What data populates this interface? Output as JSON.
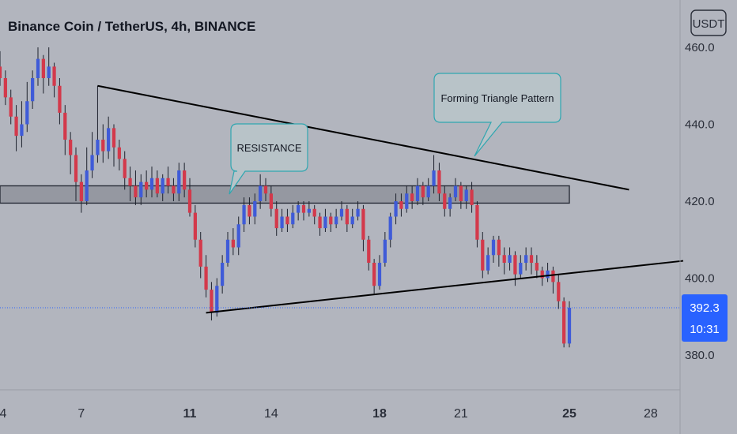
{
  "header": {
    "title": "Binance Coin / TetherUS, 4h, BINANCE"
  },
  "currency_button": {
    "label": "USDT"
  },
  "price_tag": {
    "price": "392.3",
    "countdown": "10:31",
    "color": "#2962ff"
  },
  "colors": {
    "up": "#3f5bd8",
    "down": "#d3394b",
    "background": "#b2b5be",
    "resistance_zone": "#9598a1",
    "trendline": "#000000",
    "callout_fill": "#b8c3c8",
    "callout_border": "#2fa6b0"
  },
  "annotations": {
    "resistance_label": "RESISTANCE",
    "triangle_label": "Forming Triangle Pattern"
  },
  "chart_data": {
    "type": "candlestick",
    "title": "Binance Coin / TetherUS, 4h, BINANCE",
    "y_axis": {
      "ticks": [
        "460.0",
        "440.0",
        "420.0",
        "400.0",
        "380.0"
      ],
      "tick_values": [
        460,
        440,
        420,
        400,
        380
      ],
      "range": [
        366,
        470
      ],
      "side": "right"
    },
    "x_axis": {
      "ticks": [
        "4",
        "7",
        "11",
        "14",
        "18",
        "21",
        "25",
        "28"
      ],
      "tick_values": [
        4,
        7,
        11,
        14,
        18,
        21,
        25,
        28
      ],
      "bold_ticks": [
        "11",
        "18",
        "25"
      ],
      "range": [
        4,
        29.5
      ]
    },
    "resistance_zone": {
      "low": 419.5,
      "high": 424,
      "x_start": 4,
      "x_end": 25.0
    },
    "trendlines": [
      {
        "name": "descending",
        "points": [
          [
            7.6,
            450
          ],
          [
            27.2,
            423
          ]
        ]
      },
      {
        "name": "ascending",
        "points": [
          [
            11.6,
            391
          ],
          [
            29.2,
            404.5
          ]
        ]
      }
    ],
    "last_price": 392.3,
    "current_price_line": 392.3,
    "candles": [
      [
        4.0,
        455,
        452,
        459,
        450
      ],
      [
        4.2,
        452,
        447,
        454,
        445
      ],
      [
        4.4,
        447,
        442,
        449,
        440
      ],
      [
        4.6,
        442,
        437,
        445,
        433
      ],
      [
        4.8,
        437,
        440,
        446,
        434
      ],
      [
        5.0,
        440,
        446,
        451,
        438
      ],
      [
        5.2,
        446,
        452,
        454,
        444
      ],
      [
        5.4,
        452,
        457,
        460,
        450
      ],
      [
        5.6,
        457,
        452,
        458,
        448
      ],
      [
        5.8,
        452,
        455,
        460,
        450
      ],
      [
        6.0,
        455,
        450,
        456,
        447
      ],
      [
        6.2,
        450,
        443,
        452,
        440
      ],
      [
        6.4,
        443,
        436,
        445,
        432
      ],
      [
        6.6,
        436,
        432,
        438,
        427
      ],
      [
        6.8,
        432,
        425,
        434,
        420
      ],
      [
        7.0,
        425,
        420,
        427,
        417
      ],
      [
        7.2,
        420,
        428,
        434,
        419
      ],
      [
        7.4,
        428,
        432,
        438,
        426
      ],
      [
        7.6,
        432,
        436,
        450,
        430
      ],
      [
        7.8,
        436,
        433,
        440,
        430
      ],
      [
        8.0,
        433,
        439,
        442,
        431
      ],
      [
        8.2,
        439,
        434,
        440,
        429
      ],
      [
        8.4,
        434,
        431,
        436,
        428
      ],
      [
        8.6,
        431,
        426,
        433,
        423
      ],
      [
        8.8,
        426,
        424,
        429,
        420
      ],
      [
        9.0,
        424,
        421,
        428,
        419
      ],
      [
        9.2,
        421,
        425,
        427,
        419
      ],
      [
        9.4,
        425,
        423,
        428,
        421
      ],
      [
        9.6,
        423,
        426,
        429,
        421
      ],
      [
        9.8,
        426,
        422,
        428,
        421
      ],
      [
        10.0,
        422,
        426,
        427,
        420
      ],
      [
        10.2,
        426,
        424,
        429,
        422
      ],
      [
        10.4,
        424,
        422,
        426,
        420
      ],
      [
        10.6,
        422,
        428,
        430,
        420
      ],
      [
        10.8,
        428,
        423,
        430,
        421
      ],
      [
        11.0,
        423,
        417,
        426,
        416
      ],
      [
        11.2,
        417,
        410,
        419,
        408
      ],
      [
        11.4,
        410,
        403,
        412,
        400
      ],
      [
        11.6,
        403,
        397,
        406,
        395
      ],
      [
        11.8,
        397,
        391,
        399,
        389
      ],
      [
        12.0,
        391,
        398,
        400,
        390
      ],
      [
        12.2,
        398,
        404,
        406,
        396
      ],
      [
        12.4,
        404,
        410,
        412,
        403
      ],
      [
        12.6,
        410,
        408,
        413,
        406
      ],
      [
        12.8,
        408,
        414,
        416,
        406
      ],
      [
        13.0,
        414,
        419,
        421,
        412
      ],
      [
        13.2,
        419,
        416,
        421,
        414
      ],
      [
        13.4,
        416,
        420,
        422,
        414
      ],
      [
        13.6,
        420,
        424,
        427,
        418
      ],
      [
        13.8,
        424,
        422,
        426,
        420
      ],
      [
        14.0,
        422,
        418,
        424,
        416
      ],
      [
        14.2,
        418,
        413,
        420,
        411
      ],
      [
        14.4,
        413,
        416,
        418,
        412
      ],
      [
        14.6,
        416,
        414,
        418,
        412
      ],
      [
        14.8,
        414,
        417,
        419,
        413
      ],
      [
        15.0,
        417,
        419,
        420,
        415
      ],
      [
        15.2,
        419,
        417,
        420,
        415
      ],
      [
        15.4,
        417,
        418,
        420,
        416
      ],
      [
        15.6,
        418,
        416,
        419,
        414
      ],
      [
        15.8,
        416,
        413,
        417,
        411
      ],
      [
        16.0,
        413,
        416,
        418,
        412
      ],
      [
        16.2,
        416,
        414,
        417,
        412
      ],
      [
        16.4,
        414,
        416,
        418,
        413
      ],
      [
        16.6,
        416,
        418,
        420,
        415
      ],
      [
        16.8,
        418,
        414,
        419,
        412
      ],
      [
        17.0,
        414,
        416,
        418,
        413
      ],
      [
        17.2,
        416,
        418,
        420,
        415
      ],
      [
        17.4,
        418,
        410,
        419,
        407
      ],
      [
        17.6,
        410,
        404,
        411,
        402
      ],
      [
        17.8,
        404,
        398,
        405,
        396
      ],
      [
        18.0,
        398,
        404,
        406,
        397
      ],
      [
        18.2,
        404,
        410,
        412,
        403
      ],
      [
        18.4,
        410,
        416,
        417,
        408
      ],
      [
        18.6,
        416,
        420,
        422,
        414
      ],
      [
        18.8,
        420,
        418,
        422,
        416
      ],
      [
        19.0,
        418,
        422,
        424,
        417
      ],
      [
        19.2,
        422,
        420,
        424,
        418
      ],
      [
        19.4,
        420,
        424,
        426,
        419
      ],
      [
        19.6,
        424,
        421,
        425,
        419
      ],
      [
        19.8,
        421,
        424,
        426,
        420
      ],
      [
        20.0,
        424,
        428,
        432,
        422
      ],
      [
        20.2,
        428,
        422,
        430,
        420
      ],
      [
        20.4,
        422,
        418,
        424,
        416
      ],
      [
        20.6,
        418,
        421,
        422,
        416
      ],
      [
        20.8,
        421,
        424,
        426,
        420
      ],
      [
        21.0,
        424,
        420,
        425,
        418
      ],
      [
        21.2,
        420,
        423,
        424,
        418
      ],
      [
        21.4,
        423,
        419,
        425,
        417
      ],
      [
        21.6,
        419,
        410,
        420,
        408
      ],
      [
        21.8,
        410,
        402,
        412,
        400
      ],
      [
        22.0,
        402,
        406,
        408,
        401
      ],
      [
        22.2,
        406,
        410,
        411,
        404
      ],
      [
        22.4,
        410,
        406,
        411,
        403
      ],
      [
        22.6,
        406,
        404,
        408,
        401
      ],
      [
        22.8,
        404,
        406,
        408,
        402
      ],
      [
        23.0,
        406,
        401,
        407,
        398
      ],
      [
        23.2,
        401,
        404,
        406,
        400
      ],
      [
        23.4,
        404,
        406,
        408,
        402
      ],
      [
        23.6,
        406,
        404,
        408,
        401
      ],
      [
        23.8,
        404,
        402,
        406,
        400
      ],
      [
        24.0,
        402,
        400,
        403,
        398
      ],
      [
        24.2,
        400,
        402,
        404,
        399
      ],
      [
        24.4,
        402,
        399,
        403,
        396
      ],
      [
        24.6,
        399,
        394,
        401,
        392
      ],
      [
        24.8,
        394,
        383,
        395,
        382
      ],
      [
        25.0,
        383,
        392.3,
        394,
        382
      ]
    ]
  }
}
